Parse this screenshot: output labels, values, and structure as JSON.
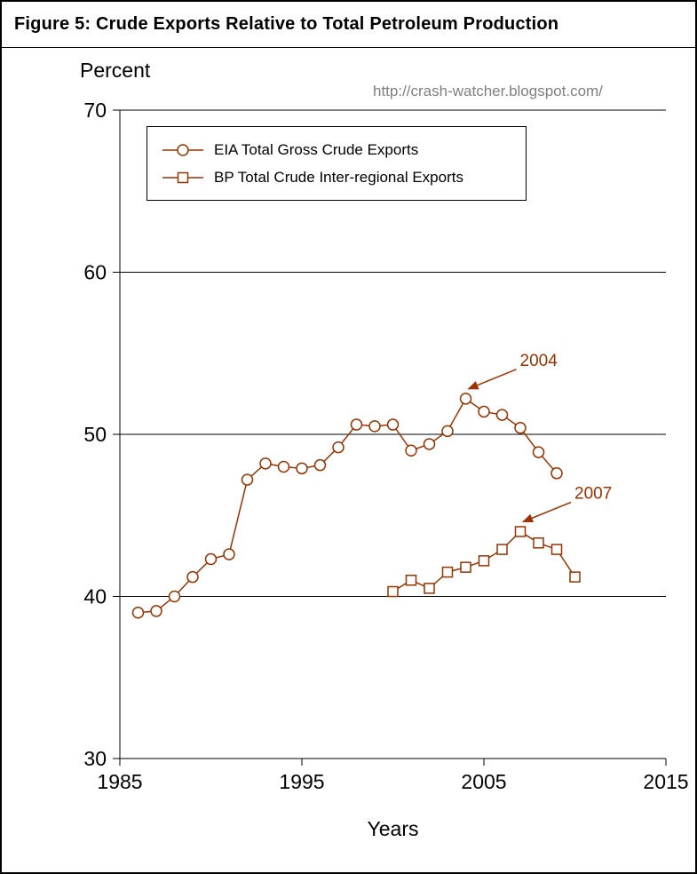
{
  "figure": {
    "watermark_url": "http://crash-watcher.blogspot.com/"
  },
  "chart_data": {
    "type": "line",
    "title": "Figure 5: Crude Exports Relative to Total Petroleum Production",
    "xlabel": "Years",
    "ylabel": "Percent",
    "xlim": [
      1985,
      2015
    ],
    "ylim": [
      30,
      70
    ],
    "x_ticks": [
      1985,
      1995,
      2005,
      2015
    ],
    "y_ticks": [
      30,
      40,
      50,
      60,
      70
    ],
    "grid": "horizontal-only",
    "legend_position": "top-left-inside",
    "line_color": "#993300",
    "marker_fill": "#ffffff",
    "series": [
      {
        "id": "eia-exports",
        "name": "EIA Total Gross Crude Exports",
        "marker": "circle",
        "color": "#993300",
        "x": [
          1986,
          1987,
          1988,
          1989,
          1990,
          1991,
          1992,
          1993,
          1994,
          1995,
          1996,
          1997,
          1998,
          1999,
          2000,
          2001,
          2002,
          2003,
          2004,
          2005,
          2006,
          2007,
          2008,
          2009
        ],
        "values": [
          39.0,
          39.1,
          40.0,
          41.2,
          42.3,
          42.6,
          47.2,
          48.2,
          48.0,
          47.9,
          48.1,
          49.2,
          50.6,
          50.5,
          50.6,
          49.0,
          49.4,
          50.2,
          52.2,
          51.4,
          51.2,
          50.4,
          48.9,
          47.6
        ]
      },
      {
        "id": "bp-exports",
        "name": "BP Total Crude Inter-regional Exports",
        "marker": "square",
        "color": "#993300",
        "x": [
          2000,
          2001,
          2002,
          2003,
          2004,
          2005,
          2006,
          2007,
          2008,
          2009,
          2010
        ],
        "values": [
          40.3,
          41.0,
          40.5,
          41.5,
          41.8,
          42.2,
          42.9,
          44.0,
          43.3,
          42.9,
          41.2
        ]
      }
    ],
    "annotations": [
      {
        "label": "2004",
        "x": 2004,
        "y": 52.2
      },
      {
        "label": "2007",
        "x": 2007,
        "y": 44.0
      }
    ]
  }
}
